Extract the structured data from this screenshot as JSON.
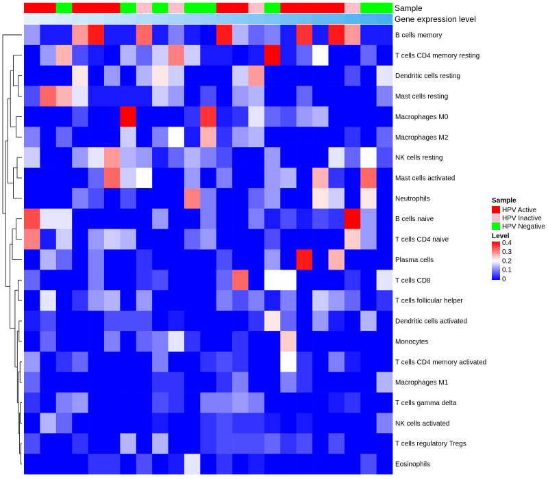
{
  "chart_data": {
    "type": "heatmap",
    "title": "",
    "annotation_tracks": [
      {
        "name": "Sample",
        "categories": [
          "HPV Active",
          "HPV Active",
          "HPV Negative",
          "HPV Active",
          "HPV Active",
          "HPV Active",
          "HPV Negative",
          "HPV Inactive",
          "HPV Negative",
          "HPV Inactive",
          "HPV Negative",
          "HPV Negative",
          "HPV Active",
          "HPV Active",
          "HPV Inactive",
          "HPV Negative",
          "HPV Active",
          "HPV Active",
          "HPV Active",
          "HPV Active",
          "HPV Inactive",
          "HPV Negative",
          "HPV Negative"
        ]
      },
      {
        "name": "Gene expression level",
        "values": [
          0.0,
          0.05,
          0.09,
          0.14,
          0.18,
          0.23,
          0.27,
          0.32,
          0.36,
          0.41,
          0.45,
          0.5,
          0.55,
          0.59,
          0.64,
          0.68,
          0.73,
          0.77,
          0.82,
          0.86,
          0.91,
          0.95,
          1.0
        ]
      }
    ],
    "rows": [
      "B cells memory",
      "T cells CD4 memory resting",
      "Dendritic cells resting",
      "Mast cells resting",
      "Macrophages M0",
      "Macrophages M2",
      "NK cells resting",
      "Mast cells activated",
      "Neutrophils",
      "B cells naive",
      "T cells CD4 naive",
      "Plasma cells",
      "T cells CD8",
      "T cells follicular helper",
      "Dendritic cells activated",
      "Monocytes",
      "T cells CD4 memory activated",
      "Macrophages M1",
      "T cells gamma delta",
      "NK cells activated",
      "T cells regulatory  Tregs",
      "Eosinophils"
    ],
    "values": [
      [
        0.12,
        0.02,
        0.02,
        0.28,
        0.38,
        0.02,
        0.02,
        0.32,
        0.02,
        0.1,
        0.02,
        0.0,
        0.38,
        0.14,
        0.08,
        0.1,
        0.02,
        0.36,
        0.02,
        0.38,
        0.28,
        0.02,
        0.02
      ],
      [
        0.0,
        0.12,
        0.26,
        0.06,
        0.02,
        0.0,
        0.14,
        0.08,
        0.16,
        0.3,
        0.16,
        0.02,
        0.02,
        0.0,
        0.02,
        0.4,
        0.02,
        0.08,
        0.2,
        0.0,
        0.0,
        0.08,
        0.0
      ],
      [
        0.0,
        0.0,
        0.0,
        0.22,
        0.0,
        0.12,
        0.0,
        0.14,
        0.22,
        0.16,
        0.0,
        0.0,
        0.0,
        0.16,
        0.28,
        0.0,
        0.0,
        0.0,
        0.0,
        0.0,
        0.06,
        0.0,
        0.18
      ],
      [
        0.06,
        0.32,
        0.26,
        0.18,
        0.02,
        0.02,
        0.02,
        0.02,
        0.16,
        0.12,
        0.0,
        0.06,
        0.0,
        0.12,
        0.14,
        0.0,
        0.0,
        0.08,
        0.0,
        0.0,
        0.0,
        0.0,
        0.1
      ],
      [
        0.0,
        0.0,
        0.0,
        0.06,
        0.0,
        0.0,
        0.4,
        0.0,
        0.0,
        0.0,
        0.04,
        0.36,
        0.02,
        0.04,
        0.18,
        0.08,
        0.06,
        0.12,
        0.14,
        0.0,
        0.0,
        0.0,
        0.0
      ],
      [
        0.1,
        0.0,
        0.08,
        0.0,
        0.0,
        0.0,
        0.16,
        0.0,
        0.1,
        0.2,
        0.02,
        0.26,
        0.04,
        0.12,
        0.14,
        0.0,
        0.0,
        0.0,
        0.0,
        0.0,
        0.04,
        0.0,
        0.08
      ],
      [
        0.16,
        0.0,
        0.0,
        0.12,
        0.18,
        0.28,
        0.14,
        0.12,
        0.02,
        0.08,
        0.14,
        0.1,
        0.06,
        0.0,
        0.0,
        0.12,
        0.0,
        0.0,
        0.0,
        0.18,
        0.08,
        0.2,
        0.06
      ],
      [
        0.0,
        0.0,
        0.0,
        0.0,
        0.08,
        0.32,
        0.16,
        0.2,
        0.0,
        0.0,
        0.12,
        0.0,
        0.1,
        0.0,
        0.0,
        0.12,
        0.14,
        0.0,
        0.26,
        0.04,
        0.0,
        0.32,
        0.0
      ],
      [
        0.0,
        0.0,
        0.0,
        0.1,
        0.06,
        0.0,
        0.06,
        0.0,
        0.0,
        0.0,
        0.3,
        0.1,
        0.0,
        0.0,
        0.08,
        0.12,
        0.0,
        0.0,
        0.22,
        0.16,
        0.0,
        0.22,
        0.0
      ],
      [
        0.34,
        0.18,
        0.18,
        0.0,
        0.0,
        0.0,
        0.0,
        0.0,
        0.12,
        0.0,
        0.0,
        0.1,
        0.0,
        0.0,
        0.1,
        0.02,
        0.06,
        0.02,
        0.06,
        0.04,
        0.4,
        0.12,
        0.0
      ],
      [
        0.3,
        0.02,
        0.16,
        0.0,
        0.12,
        0.16,
        0.14,
        0.0,
        0.0,
        0.0,
        0.08,
        0.12,
        0.0,
        0.0,
        0.0,
        0.06,
        0.0,
        0.0,
        0.0,
        0.0,
        0.24,
        0.12,
        0.0
      ],
      [
        0.0,
        0.14,
        0.08,
        0.0,
        0.1,
        0.0,
        0.0,
        0.04,
        0.0,
        0.0,
        0.0,
        0.0,
        0.06,
        0.0,
        0.0,
        0.12,
        0.0,
        0.38,
        0.0,
        0.26,
        0.0,
        0.0,
        0.0
      ],
      [
        0.08,
        0.0,
        0.0,
        0.0,
        0.1,
        0.0,
        0.0,
        0.04,
        0.06,
        0.0,
        0.0,
        0.0,
        0.08,
        0.32,
        0.0,
        0.2,
        0.2,
        0.0,
        0.0,
        0.0,
        0.04,
        0.0,
        0.18
      ],
      [
        0.0,
        0.18,
        0.0,
        0.04,
        0.12,
        0.14,
        0.0,
        0.12,
        0.0,
        0.0,
        0.0,
        0.0,
        0.1,
        0.06,
        0.1,
        0.02,
        0.1,
        0.0,
        0.16,
        0.12,
        0.08,
        0.0,
        0.04
      ],
      [
        0.02,
        0.06,
        0.0,
        0.0,
        0.0,
        0.06,
        0.06,
        0.06,
        0.0,
        0.02,
        0.0,
        0.0,
        0.0,
        0.0,
        0.04,
        0.22,
        0.08,
        0.0,
        0.12,
        0.02,
        0.0,
        0.14,
        0.0
      ],
      [
        0.0,
        0.08,
        0.0,
        0.0,
        0.0,
        0.1,
        0.0,
        0.08,
        0.1,
        0.18,
        0.04,
        0.0,
        0.0,
        0.04,
        0.0,
        0.0,
        0.24,
        0.0,
        0.0,
        0.0,
        0.0,
        0.0,
        0.0
      ],
      [
        0.12,
        0.0,
        0.04,
        0.08,
        0.0,
        0.0,
        0.0,
        0.0,
        0.1,
        0.0,
        0.0,
        0.04,
        0.06,
        0.04,
        0.0,
        0.0,
        0.2,
        0.04,
        0.0,
        0.1,
        0.02,
        0.0,
        0.0
      ],
      [
        0.08,
        0.0,
        0.0,
        0.0,
        0.0,
        0.0,
        0.0,
        0.0,
        0.04,
        0.04,
        0.0,
        0.0,
        0.04,
        0.1,
        0.0,
        0.0,
        0.1,
        0.04,
        0.0,
        0.0,
        0.0,
        0.0,
        0.14
      ],
      [
        0.04,
        0.0,
        0.1,
        0.12,
        0.0,
        0.0,
        0.0,
        0.0,
        0.06,
        0.04,
        0.0,
        0.1,
        0.1,
        0.12,
        0.1,
        0.0,
        0.0,
        0.0,
        0.0,
        0.02,
        0.04,
        0.0,
        0.0
      ],
      [
        0.0,
        0.14,
        0.08,
        0.0,
        0.0,
        0.0,
        0.0,
        0.0,
        0.02,
        0.0,
        0.0,
        0.04,
        0.06,
        0.04,
        0.04,
        0.02,
        0.0,
        0.02,
        0.0,
        0.0,
        0.0,
        0.0,
        0.1
      ],
      [
        0.06,
        0.0,
        0.0,
        0.04,
        0.0,
        0.0,
        0.14,
        0.0,
        0.14,
        0.0,
        0.0,
        0.04,
        0.06,
        0.06,
        0.06,
        0.08,
        0.04,
        0.06,
        0.0,
        0.06,
        0.0,
        0.0,
        0.0
      ],
      [
        0.0,
        0.0,
        0.0,
        0.0,
        0.04,
        0.04,
        0.0,
        0.06,
        0.0,
        0.02,
        0.18,
        0.0,
        0.04,
        0.0,
        0.02,
        0.0,
        0.0,
        0.0,
        0.0,
        0.0,
        0.0,
        0.06,
        0.0
      ]
    ],
    "colorscale": {
      "min": 0,
      "mid": 0.2,
      "max": 0.4,
      "low": "#0000FF",
      "midcolor": "#FFFFFF",
      "high": "#FF0000"
    },
    "legends": {
      "sample": {
        "title": "Sample",
        "items": [
          {
            "label": "HPV Active",
            "color": "#FF0000"
          },
          {
            "label": "HPV Inactive",
            "color": "#FFC0CB"
          },
          {
            "label": "HPV Negative",
            "color": "#00FF00"
          }
        ]
      },
      "level": {
        "title": "Level",
        "ticks": [
          "0.4",
          "0.3",
          "0.2",
          "0.1",
          "0"
        ]
      }
    },
    "gene_expression_colors": {
      "low": "#E4F2FF",
      "high": "#4AAEF2"
    }
  }
}
